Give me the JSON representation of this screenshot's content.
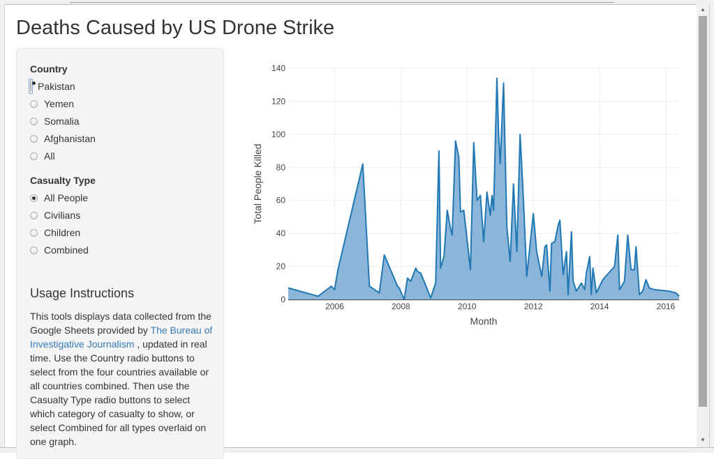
{
  "page": {
    "title": "Deaths Caused by US Drone Strike"
  },
  "sidebar": {
    "country": {
      "label": "Country",
      "options": [
        "Pakistan",
        "Yemen",
        "Somalia",
        "Afghanistan",
        "All"
      ],
      "selected": "Pakistan"
    },
    "casualty": {
      "label": "Casualty Type",
      "options": [
        "All People",
        "Civilians",
        "Children",
        "Combined"
      ],
      "selected": "All People"
    },
    "usage": {
      "title": "Usage Instructions",
      "text_before": "This tools displays data collected from the Google Sheets provided by ",
      "link_text": "The Bureau of Investigative Journalism",
      "text_after": " , updated in real time. Use the Country radio buttons to select from the four countries available or all countries combined. Then use the Casualty Type radio buttons to select which category of casualty to show, or select Combined for all types overlaid on one graph."
    }
  },
  "chart_data": {
    "type": "area",
    "title": "",
    "xlabel": "Month",
    "ylabel": "Total People Killed",
    "xlim": [
      2004.6,
      2016.4
    ],
    "ylim": [
      0,
      140
    ],
    "x_ticks": [
      2006,
      2008,
      2010,
      2012,
      2014,
      2016
    ],
    "y_ticks": [
      0,
      20,
      40,
      60,
      80,
      100,
      120,
      140
    ],
    "grid": true,
    "colors": {
      "line": "#1f77b4",
      "fill": "#8cb6d9"
    },
    "x": [
      2004.6,
      2005.5,
      2005.9,
      2006.0,
      2006.1,
      2006.85,
      2007.05,
      2007.35,
      2007.5,
      2007.9,
      2007.95,
      2008.1,
      2008.2,
      2008.3,
      2008.45,
      2008.5,
      2008.6,
      2008.9,
      2009.05,
      2009.15,
      2009.2,
      2009.3,
      2009.4,
      2009.5,
      2009.55,
      2009.65,
      2009.75,
      2009.8,
      2009.9,
      2010.1,
      2010.2,
      2010.3,
      2010.4,
      2010.5,
      2010.6,
      2010.7,
      2010.75,
      2010.8,
      2010.9,
      2010.95,
      2011.0,
      2011.1,
      2011.2,
      2011.3,
      2011.4,
      2011.5,
      2011.6,
      2011.7,
      2011.8,
      2012.0,
      2012.1,
      2012.25,
      2012.35,
      2012.4,
      2012.5,
      2012.55,
      2012.65,
      2012.75,
      2012.8,
      2012.9,
      2013.0,
      2013.05,
      2013.15,
      2013.2,
      2013.3,
      2013.45,
      2013.55,
      2013.6,
      2013.7,
      2013.75,
      2013.8,
      2013.9,
      2014.1,
      2014.45,
      2014.55,
      2014.6,
      2014.75,
      2014.85,
      2014.95,
      2015.05,
      2015.1,
      2015.2,
      2015.3,
      2015.4,
      2015.5,
      2015.65,
      2016.1,
      2016.3,
      2016.4
    ],
    "values": [
      7,
      2,
      8,
      6,
      18,
      82,
      8,
      4,
      27,
      8,
      7,
      0,
      13,
      11,
      19,
      17,
      16,
      1,
      10,
      90,
      19,
      26,
      54,
      43,
      39,
      96,
      86,
      53,
      54,
      18,
      95,
      60,
      63,
      35,
      65,
      51,
      63,
      54,
      134,
      100,
      82,
      131,
      44,
      23,
      70,
      29,
      100,
      61,
      14,
      52,
      29,
      14,
      32,
      33,
      5,
      34,
      35,
      45,
      48,
      15,
      29,
      3,
      41,
      11,
      5,
      10,
      6,
      16,
      26,
      3,
      19,
      4,
      12,
      20,
      39,
      6,
      11,
      39,
      18,
      18,
      32,
      3,
      5,
      12,
      7,
      6,
      5,
      4,
      2
    ]
  }
}
